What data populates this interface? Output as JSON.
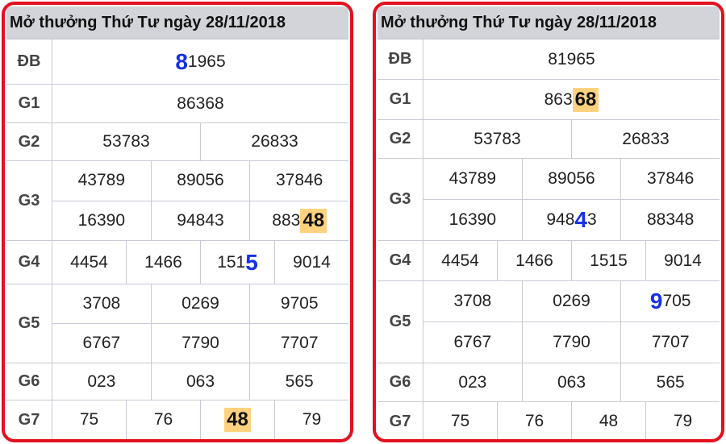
{
  "colors": {
    "frame": "#e3101d",
    "highlight": "#fdd27f",
    "blue_digit": "#1530e8",
    "header_bg": "#d2d4d9"
  },
  "panels": [
    {
      "title": "Mở thưởng Thứ Tư ngày 28/11/2018",
      "prizes": [
        {
          "label": "ĐB",
          "lines": [
            [
              [
                {
                  "t": "8",
                  "s": "blue"
                },
                {
                  "t": "1965",
                  "s": ""
                }
              ]
            ]
          ]
        },
        {
          "label": "G1",
          "lines": [
            [
              [
                {
                  "t": "86368",
                  "s": ""
                }
              ]
            ]
          ]
        },
        {
          "label": "G2",
          "lines": [
            [
              [
                {
                  "t": "53783",
                  "s": ""
                }
              ],
              [
                {
                  "t": "26833",
                  "s": ""
                }
              ]
            ]
          ]
        },
        {
          "label": "G3",
          "lines": [
            [
              [
                {
                  "t": "43789",
                  "s": ""
                }
              ],
              [
                {
                  "t": "89056",
                  "s": ""
                }
              ],
              [
                {
                  "t": "37846",
                  "s": ""
                }
              ]
            ],
            [
              [
                {
                  "t": "16390",
                  "s": ""
                }
              ],
              [
                {
                  "t": "94843",
                  "s": ""
                }
              ],
              [
                {
                  "t": "883",
                  "s": ""
                },
                {
                  "t": "48",
                  "s": "hl"
                }
              ]
            ]
          ]
        },
        {
          "label": "G4",
          "lines": [
            [
              [
                {
                  "t": "4454",
                  "s": ""
                }
              ],
              [
                {
                  "t": "1466",
                  "s": ""
                }
              ],
              [
                {
                  "t": "151",
                  "s": ""
                },
                {
                  "t": "5",
                  "s": "blue"
                }
              ],
              [
                {
                  "t": "9014",
                  "s": ""
                }
              ]
            ]
          ]
        },
        {
          "label": "G5",
          "lines": [
            [
              [
                {
                  "t": "3708",
                  "s": ""
                }
              ],
              [
                {
                  "t": "0269",
                  "s": ""
                }
              ],
              [
                {
                  "t": "9705",
                  "s": ""
                }
              ]
            ],
            [
              [
                {
                  "t": "6767",
                  "s": ""
                }
              ],
              [
                {
                  "t": "7790",
                  "s": ""
                }
              ],
              [
                {
                  "t": "7707",
                  "s": ""
                }
              ]
            ]
          ]
        },
        {
          "label": "G6",
          "lines": [
            [
              [
                {
                  "t": "023",
                  "s": ""
                }
              ],
              [
                {
                  "t": "063",
                  "s": ""
                }
              ],
              [
                {
                  "t": "565",
                  "s": ""
                }
              ]
            ]
          ]
        },
        {
          "label": "G7",
          "lines": [
            [
              [
                {
                  "t": "75",
                  "s": ""
                }
              ],
              [
                {
                  "t": "76",
                  "s": ""
                }
              ],
              [
                {
                  "t": "48",
                  "s": "hl"
                }
              ],
              [
                {
                  "t": "79",
                  "s": ""
                }
              ]
            ]
          ]
        }
      ]
    },
    {
      "title": "Mở thưởng Thứ Tư ngày 28/11/2018",
      "prizes": [
        {
          "label": "ĐB",
          "lines": [
            [
              [
                {
                  "t": "81965",
                  "s": ""
                }
              ]
            ]
          ]
        },
        {
          "label": "G1",
          "lines": [
            [
              [
                {
                  "t": "863",
                  "s": ""
                },
                {
                  "t": "68",
                  "s": "hl"
                }
              ]
            ]
          ]
        },
        {
          "label": "G2",
          "lines": [
            [
              [
                {
                  "t": "53783",
                  "s": ""
                }
              ],
              [
                {
                  "t": "26833",
                  "s": ""
                }
              ]
            ]
          ]
        },
        {
          "label": "G3",
          "lines": [
            [
              [
                {
                  "t": "43789",
                  "s": ""
                }
              ],
              [
                {
                  "t": "89056",
                  "s": ""
                }
              ],
              [
                {
                  "t": "37846",
                  "s": ""
                }
              ]
            ],
            [
              [
                {
                  "t": "16390",
                  "s": ""
                }
              ],
              [
                {
                  "t": "948",
                  "s": ""
                },
                {
                  "t": "4",
                  "s": "blue"
                },
                {
                  "t": "3",
                  "s": ""
                }
              ],
              [
                {
                  "t": "88348",
                  "s": ""
                }
              ]
            ]
          ]
        },
        {
          "label": "G4",
          "lines": [
            [
              [
                {
                  "t": "4454",
                  "s": ""
                }
              ],
              [
                {
                  "t": "1466",
                  "s": ""
                }
              ],
              [
                {
                  "t": "1515",
                  "s": ""
                }
              ],
              [
                {
                  "t": "9014",
                  "s": ""
                }
              ]
            ]
          ]
        },
        {
          "label": "G5",
          "lines": [
            [
              [
                {
                  "t": "3708",
                  "s": ""
                }
              ],
              [
                {
                  "t": "0269",
                  "s": ""
                }
              ],
              [
                {
                  "t": "9",
                  "s": "blue"
                },
                {
                  "t": "705",
                  "s": ""
                }
              ]
            ],
            [
              [
                {
                  "t": "6767",
                  "s": ""
                }
              ],
              [
                {
                  "t": "7790",
                  "s": ""
                }
              ],
              [
                {
                  "t": "7707",
                  "s": ""
                }
              ]
            ]
          ]
        },
        {
          "label": "G6",
          "lines": [
            [
              [
                {
                  "t": "023",
                  "s": ""
                }
              ],
              [
                {
                  "t": "063",
                  "s": ""
                }
              ],
              [
                {
                  "t": "565",
                  "s": ""
                }
              ]
            ]
          ]
        },
        {
          "label": "G7",
          "lines": [
            [
              [
                {
                  "t": "75",
                  "s": ""
                }
              ],
              [
                {
                  "t": "76",
                  "s": ""
                }
              ],
              [
                {
                  "t": "48",
                  "s": ""
                }
              ],
              [
                {
                  "t": "79",
                  "s": ""
                }
              ]
            ]
          ]
        }
      ]
    }
  ]
}
